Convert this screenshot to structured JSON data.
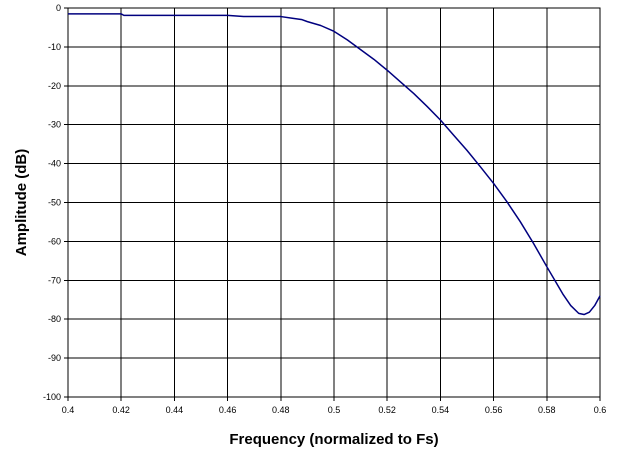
{
  "chart_data": {
    "type": "line",
    "title": "",
    "xlabel": "Frequency (normalized to Fs)",
    "ylabel": "Amplitude (dB)",
    "xlim": [
      0.4,
      0.6
    ],
    "ylim": [
      -100,
      0
    ],
    "x_ticks": [
      "0.4",
      "0.42",
      "0.44",
      "0.46",
      "0.48",
      "0.5",
      "0.52",
      "0.54",
      "0.56",
      "0.58",
      "0.6"
    ],
    "y_ticks": [
      "0",
      "-10",
      "-20",
      "-30",
      "-40",
      "-50",
      "-60",
      "-70",
      "-80",
      "-90",
      "-100"
    ],
    "grid": true,
    "legend": "none",
    "series": [
      {
        "color": "#00007f",
        "x": [
          0.4,
          0.42,
          0.421,
          0.44,
          0.46,
          0.466,
          0.48,
          0.484,
          0.488,
          0.49,
          0.495,
          0.5,
          0.505,
          0.51,
          0.515,
          0.52,
          0.525,
          0.53,
          0.535,
          0.54,
          0.545,
          0.55,
          0.555,
          0.56,
          0.565,
          0.57,
          0.575,
          0.58,
          0.583,
          0.586,
          0.589,
          0.592,
          0.594,
          0.596,
          0.598,
          0.6
        ],
        "y": [
          -1.5,
          -1.5,
          -1.9,
          -1.9,
          -1.9,
          -2.2,
          -2.2,
          -2.6,
          -3.0,
          -3.5,
          -4.5,
          -6.0,
          -8.2,
          -10.7,
          -13.2,
          -16.0,
          -19.0,
          -22.0,
          -25.3,
          -28.8,
          -32.7,
          -36.6,
          -40.8,
          -45.1,
          -49.8,
          -54.9,
          -60.5,
          -66.5,
          -70.0,
          -73.5,
          -76.5,
          -78.5,
          -78.8,
          -78.2,
          -76.5,
          -74.0
        ]
      }
    ]
  }
}
